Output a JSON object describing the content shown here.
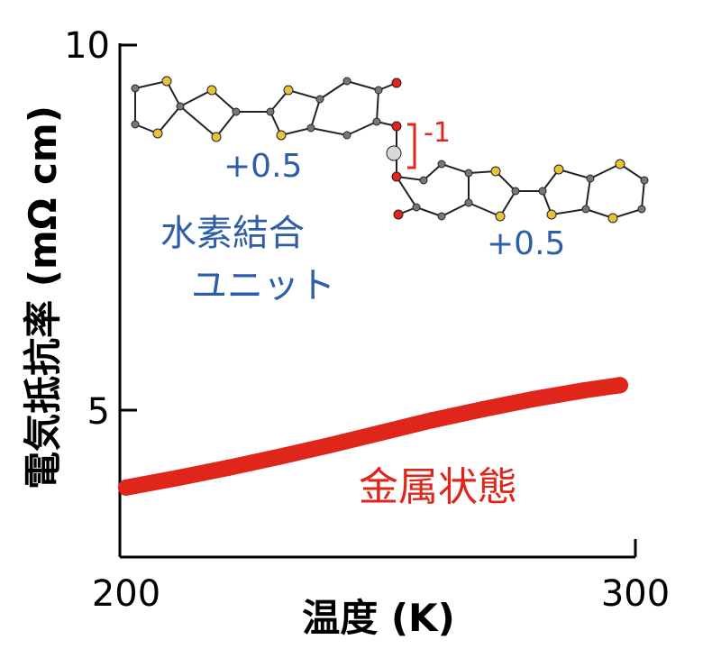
{
  "chart_data": {
    "type": "line",
    "xlabel": "温度 (K)",
    "ylabel": "電気抵抗率 (mΩ cm)",
    "xlim": [
      200,
      300
    ],
    "ylim": [
      3,
      10
    ],
    "x_ticks": [
      "200",
      "300"
    ],
    "y_ticks": [
      "5",
      "10"
    ],
    "grid": false,
    "legend": "none",
    "series": [
      {
        "color": "#e0251b",
        "x": [
          200,
          210,
          220,
          230,
          240,
          250,
          260,
          270,
          280,
          290,
          297
        ],
        "y": [
          3.95,
          4.08,
          4.22,
          4.37,
          4.53,
          4.7,
          4.87,
          5.02,
          5.16,
          5.28,
          5.35
        ]
      }
    ],
    "annotations": {
      "series_label": "金属状態",
      "unit_label_line1": "水素結合",
      "unit_label_line2": "ユニット",
      "charge_left": "+0.5",
      "charge_right": "+0.5",
      "charge_bond": "-1"
    }
  },
  "colors": {
    "series": "#e0251b",
    "annotation": "#2e5ea8",
    "axis": "#000000"
  }
}
